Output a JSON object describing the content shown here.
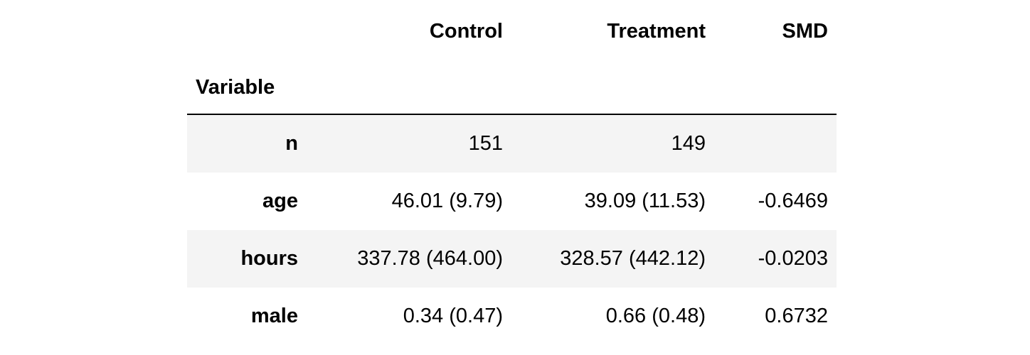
{
  "colors": {
    "background": "#ffffff",
    "stripe": "#f4f4f4",
    "header_border": "#000000",
    "text": "#000000"
  },
  "chart_data": {
    "type": "table",
    "title": "",
    "index_label": "Variable",
    "columns": [
      "Control",
      "Treatment",
      "SMD"
    ],
    "rows": [
      {
        "variable": "n",
        "values": [
          "151",
          "149",
          ""
        ]
      },
      {
        "variable": "age",
        "values": [
          "46.01 (9.79)",
          "39.09 (11.53)",
          "-0.6469"
        ]
      },
      {
        "variable": "hours",
        "values": [
          "337.78 (464.00)",
          "328.57 (442.12)",
          "-0.0203"
        ]
      },
      {
        "variable": "male",
        "values": [
          "0.34 (0.47)",
          "0.66 (0.48)",
          "0.6732"
        ]
      }
    ],
    "layout": {
      "striped_rows": "odd",
      "index_bold": true,
      "header_bold": true,
      "value_alignment": "right",
      "index_name_alignment": "left"
    }
  }
}
